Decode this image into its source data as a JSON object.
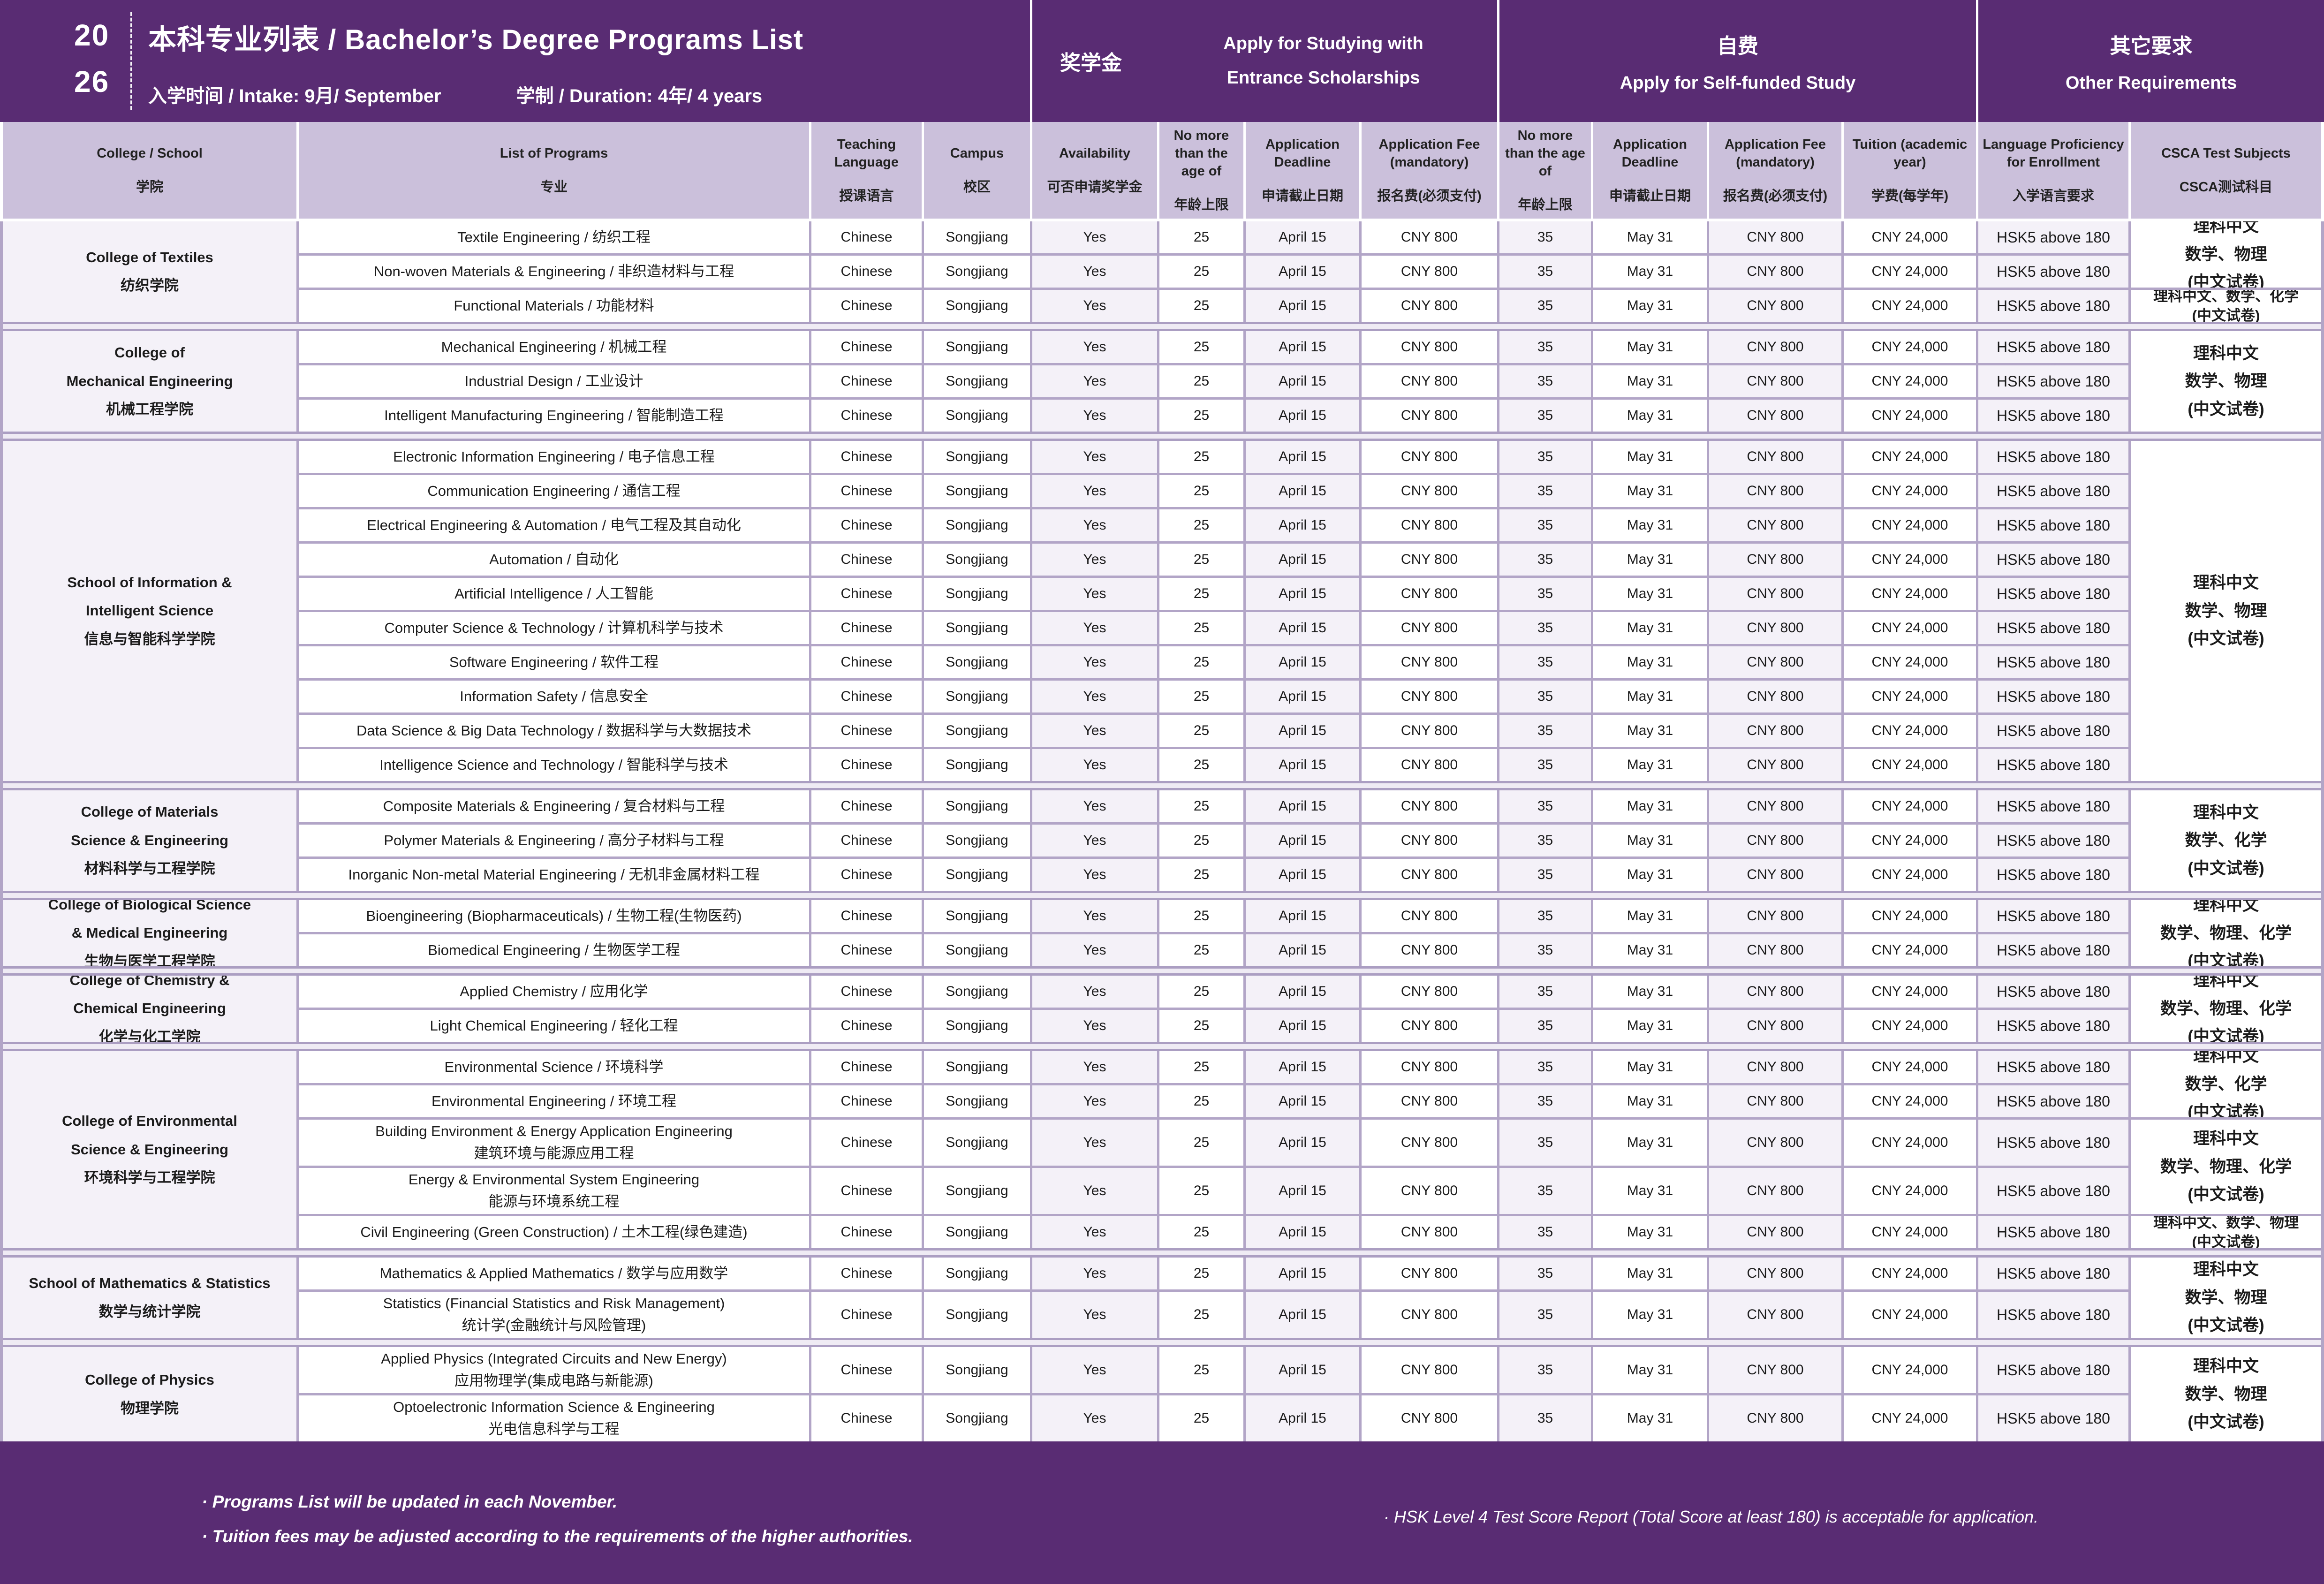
{
  "header": {
    "year_top": "20",
    "year_bottom": "26",
    "title": "本科专业列表 / Bachelor’s Degree Programs List",
    "intake": "入学时间 / Intake: 9月/ September",
    "duration": "学制 / Duration: 4年/ 4 years",
    "sections": {
      "scholarship": {
        "zh": "奖学金",
        "en_line1": "Apply for Studying with",
        "en_line2": "Entrance Scholarships"
      },
      "self_funded": {
        "zh": "自费",
        "en": "Apply for Self-funded Study"
      },
      "other": {
        "zh": "其它要求",
        "en": "Other Requirements"
      }
    }
  },
  "columns": [
    {
      "en": "College / School",
      "zh": "学院"
    },
    {
      "en": "List of Programs",
      "zh": "专业"
    },
    {
      "en": "Teaching Language",
      "zh": "授课语言"
    },
    {
      "en": "Campus",
      "zh": "校区"
    },
    {
      "en": "Availability",
      "zh": "可否申请奖学金"
    },
    {
      "en": "No more than the age of",
      "zh": "年龄上限"
    },
    {
      "en": "Application Deadline",
      "zh": "申请截止日期"
    },
    {
      "en": "Application Fee (mandatory)",
      "zh": "报名费(必须支付)"
    },
    {
      "en": "No more than the age of",
      "zh": "年龄上限"
    },
    {
      "en": "Application Deadline",
      "zh": "申请截止日期"
    },
    {
      "en": "Application Fee (mandatory)",
      "zh": "报名费(必须支付)"
    },
    {
      "en": "Tuition (academic year)",
      "zh": "学费(每学年)"
    },
    {
      "en": "Language Proficiency for Enrollment",
      "zh": "入学语言要求"
    },
    {
      "en": "CSCA Test Subjects",
      "zh": "CSCA测试科目"
    }
  ],
  "row_defaults": {
    "teaching_language": "Chinese",
    "campus": "Songjiang",
    "availability": "Yes",
    "scholarship_age": "25",
    "scholarship_deadline": "April 15",
    "scholarship_fee": "CNY 800",
    "self_age": "35",
    "self_deadline": "May 31",
    "self_fee": "CNY 800",
    "tuition": "CNY 24,000",
    "language": "HSK5 above 180"
  },
  "groups": [
    {
      "college": {
        "en_lines": [
          "College of Textiles"
        ],
        "zh": "纺织学院"
      },
      "programs": [
        {
          "lines": [
            "Textile Engineering / 纺织工程"
          ],
          "tall": false
        },
        {
          "lines": [
            "Non-woven Materials & Engineering / 非织造材料与工程"
          ],
          "tall": false
        },
        {
          "lines": [
            "Functional Materials / 功能材料"
          ],
          "tall": false
        }
      ],
      "csca": [
        {
          "start": 0,
          "span": 2,
          "small": false,
          "lines": [
            "理科中文",
            "数学、物理",
            "(中文试卷)"
          ]
        },
        {
          "start": 2,
          "span": 1,
          "small": true,
          "lines": [
            "理科中文、数学、化学",
            "(中文试卷)"
          ]
        }
      ]
    },
    {
      "college": {
        "en_lines": [
          "College of",
          "Mechanical Engineering"
        ],
        "zh": "机械工程学院"
      },
      "programs": [
        {
          "lines": [
            "Mechanical Engineering / 机械工程"
          ],
          "tall": false
        },
        {
          "lines": [
            "Industrial Design / 工业设计"
          ],
          "tall": false
        },
        {
          "lines": [
            "Intelligent Manufacturing Engineering / 智能制造工程"
          ],
          "tall": false
        }
      ],
      "csca": [
        {
          "start": 0,
          "span": 3,
          "small": false,
          "lines": [
            "理科中文",
            "数学、物理",
            "(中文试卷)"
          ]
        }
      ]
    },
    {
      "college": {
        "en_lines": [
          "School of Information &",
          "Intelligent Science"
        ],
        "zh": "信息与智能科学学院"
      },
      "programs": [
        {
          "lines": [
            "Electronic Information Engineering / 电子信息工程"
          ],
          "tall": false
        },
        {
          "lines": [
            "Communication Engineering / 通信工程"
          ],
          "tall": false
        },
        {
          "lines": [
            "Electrical Engineering & Automation / 电气工程及其自动化"
          ],
          "tall": false
        },
        {
          "lines": [
            "Automation / 自动化"
          ],
          "tall": false
        },
        {
          "lines": [
            "Artificial Intelligence / 人工智能"
          ],
          "tall": false
        },
        {
          "lines": [
            "Computer Science & Technology / 计算机科学与技术"
          ],
          "tall": false
        },
        {
          "lines": [
            "Software Engineering / 软件工程"
          ],
          "tall": false
        },
        {
          "lines": [
            "Information Safety / 信息安全"
          ],
          "tall": false
        },
        {
          "lines": [
            "Data Science & Big Data Technology / 数据科学与大数据技术"
          ],
          "tall": false
        },
        {
          "lines": [
            "Intelligence Science and Technology / 智能科学与技术"
          ],
          "tall": false
        }
      ],
      "csca": [
        {
          "start": 0,
          "span": 10,
          "small": false,
          "lines": [
            "理科中文",
            "数学、物理",
            "(中文试卷)"
          ]
        }
      ]
    },
    {
      "college": {
        "en_lines": [
          "College of Materials",
          "Science & Engineering"
        ],
        "zh": "材料科学与工程学院"
      },
      "programs": [
        {
          "lines": [
            "Composite Materials & Engineering / 复合材料与工程"
          ],
          "tall": false
        },
        {
          "lines": [
            "Polymer Materials & Engineering / 高分子材料与工程"
          ],
          "tall": false
        },
        {
          "lines": [
            "Inorganic Non-metal Material Engineering / 无机非金属材料工程"
          ],
          "tall": false
        }
      ],
      "csca": [
        {
          "start": 0,
          "span": 3,
          "small": false,
          "lines": [
            "理科中文",
            "数学、化学",
            "(中文试卷)"
          ]
        }
      ]
    },
    {
      "college": {
        "en_lines": [
          "College of Biological Science",
          "&  Medical Engineering"
        ],
        "zh": "生物与医学工程学院"
      },
      "programs": [
        {
          "lines": [
            "Bioengineering (Biopharmaceuticals) / 生物工程(生物医药)"
          ],
          "tall": false
        },
        {
          "lines": [
            "Biomedical Engineering / 生物医学工程"
          ],
          "tall": false
        }
      ],
      "csca": [
        {
          "start": 0,
          "span": 2,
          "small": false,
          "lines": [
            "理科中文",
            "数学、物理、化学",
            "(中文试卷)"
          ]
        }
      ]
    },
    {
      "college": {
        "en_lines": [
          "College of Chemistry &",
          "Chemical Engineering"
        ],
        "zh": "化学与化工学院"
      },
      "programs": [
        {
          "lines": [
            "Applied Chemistry / 应用化学"
          ],
          "tall": false
        },
        {
          "lines": [
            "Light Chemical Engineering / 轻化工程"
          ],
          "tall": false
        }
      ],
      "csca": [
        {
          "start": 0,
          "span": 2,
          "small": false,
          "lines": [
            "理科中文",
            "数学、物理、化学",
            "(中文试卷)"
          ]
        }
      ]
    },
    {
      "college": {
        "en_lines": [
          "College of Environmental",
          "Science & Engineering"
        ],
        "zh": "环境科学与工程学院"
      },
      "programs": [
        {
          "lines": [
            "Environmental Science / 环境科学"
          ],
          "tall": false
        },
        {
          "lines": [
            "Environmental Engineering / 环境工程"
          ],
          "tall": false
        },
        {
          "lines": [
            "Building Environment & Energy Application Engineering",
            "建筑环境与能源应用工程"
          ],
          "tall": true
        },
        {
          "lines": [
            "Energy & Environmental System Engineering",
            "能源与环境系统工程"
          ],
          "tall": true
        },
        {
          "lines": [
            "Civil Engineering (Green Construction) / 土木工程(绿色建造)"
          ],
          "tall": false
        }
      ],
      "csca": [
        {
          "start": 0,
          "span": 2,
          "small": false,
          "lines": [
            "理科中文",
            "数学、化学",
            "(中文试卷)"
          ]
        },
        {
          "start": 2,
          "span": 2,
          "small": false,
          "lines": [
            "理科中文",
            "数学、物理、化学",
            "(中文试卷)"
          ]
        },
        {
          "start": 4,
          "span": 1,
          "small": true,
          "lines": [
            "理科中文、数学、物理",
            "(中文试卷)"
          ]
        }
      ]
    },
    {
      "college": {
        "en_lines": [
          "School of Mathematics & Statistics"
        ],
        "zh": "数学与统计学院"
      },
      "programs": [
        {
          "lines": [
            "Mathematics & Applied Mathematics / 数学与应用数学"
          ],
          "tall": false
        },
        {
          "lines": [
            "Statistics (Financial Statistics and Risk Management)",
            "统计学(金融统计与风险管理)"
          ],
          "tall": true
        }
      ],
      "csca": [
        {
          "start": 0,
          "span": 2,
          "small": false,
          "lines": [
            "理科中文",
            "数学、物理",
            "(中文试卷)"
          ]
        }
      ]
    },
    {
      "college": {
        "en_lines": [
          "College of Physics"
        ],
        "zh": "物理学院"
      },
      "programs": [
        {
          "lines": [
            "Applied Physics (Integrated Circuits and New Energy)",
            "应用物理学(集成电路与新能源)"
          ],
          "tall": true
        },
        {
          "lines": [
            "Optoelectronic Information Science & Engineering",
            "光电信息科学与工程"
          ],
          "tall": true
        }
      ],
      "csca": [
        {
          "start": 0,
          "span": 2,
          "small": false,
          "lines": [
            "理科中文",
            "数学、物理",
            "(中文试卷)"
          ]
        }
      ]
    }
  ],
  "footer": {
    "notes_left": [
      "· Programs List will be updated in each November.",
      "· Tuition fees may be adjusted according to the requirements of the higher authorities."
    ],
    "note_right": "· HSK Level 4 Test Score Report (Total Score at least 180) is acceptable for application."
  },
  "colors": {
    "brand_purple": "#592C73",
    "header_lavender": "#CBC0DB",
    "pale_cell": "#F4F1F8",
    "separator": "#B2A5C7",
    "text": "#1B1B1B"
  }
}
